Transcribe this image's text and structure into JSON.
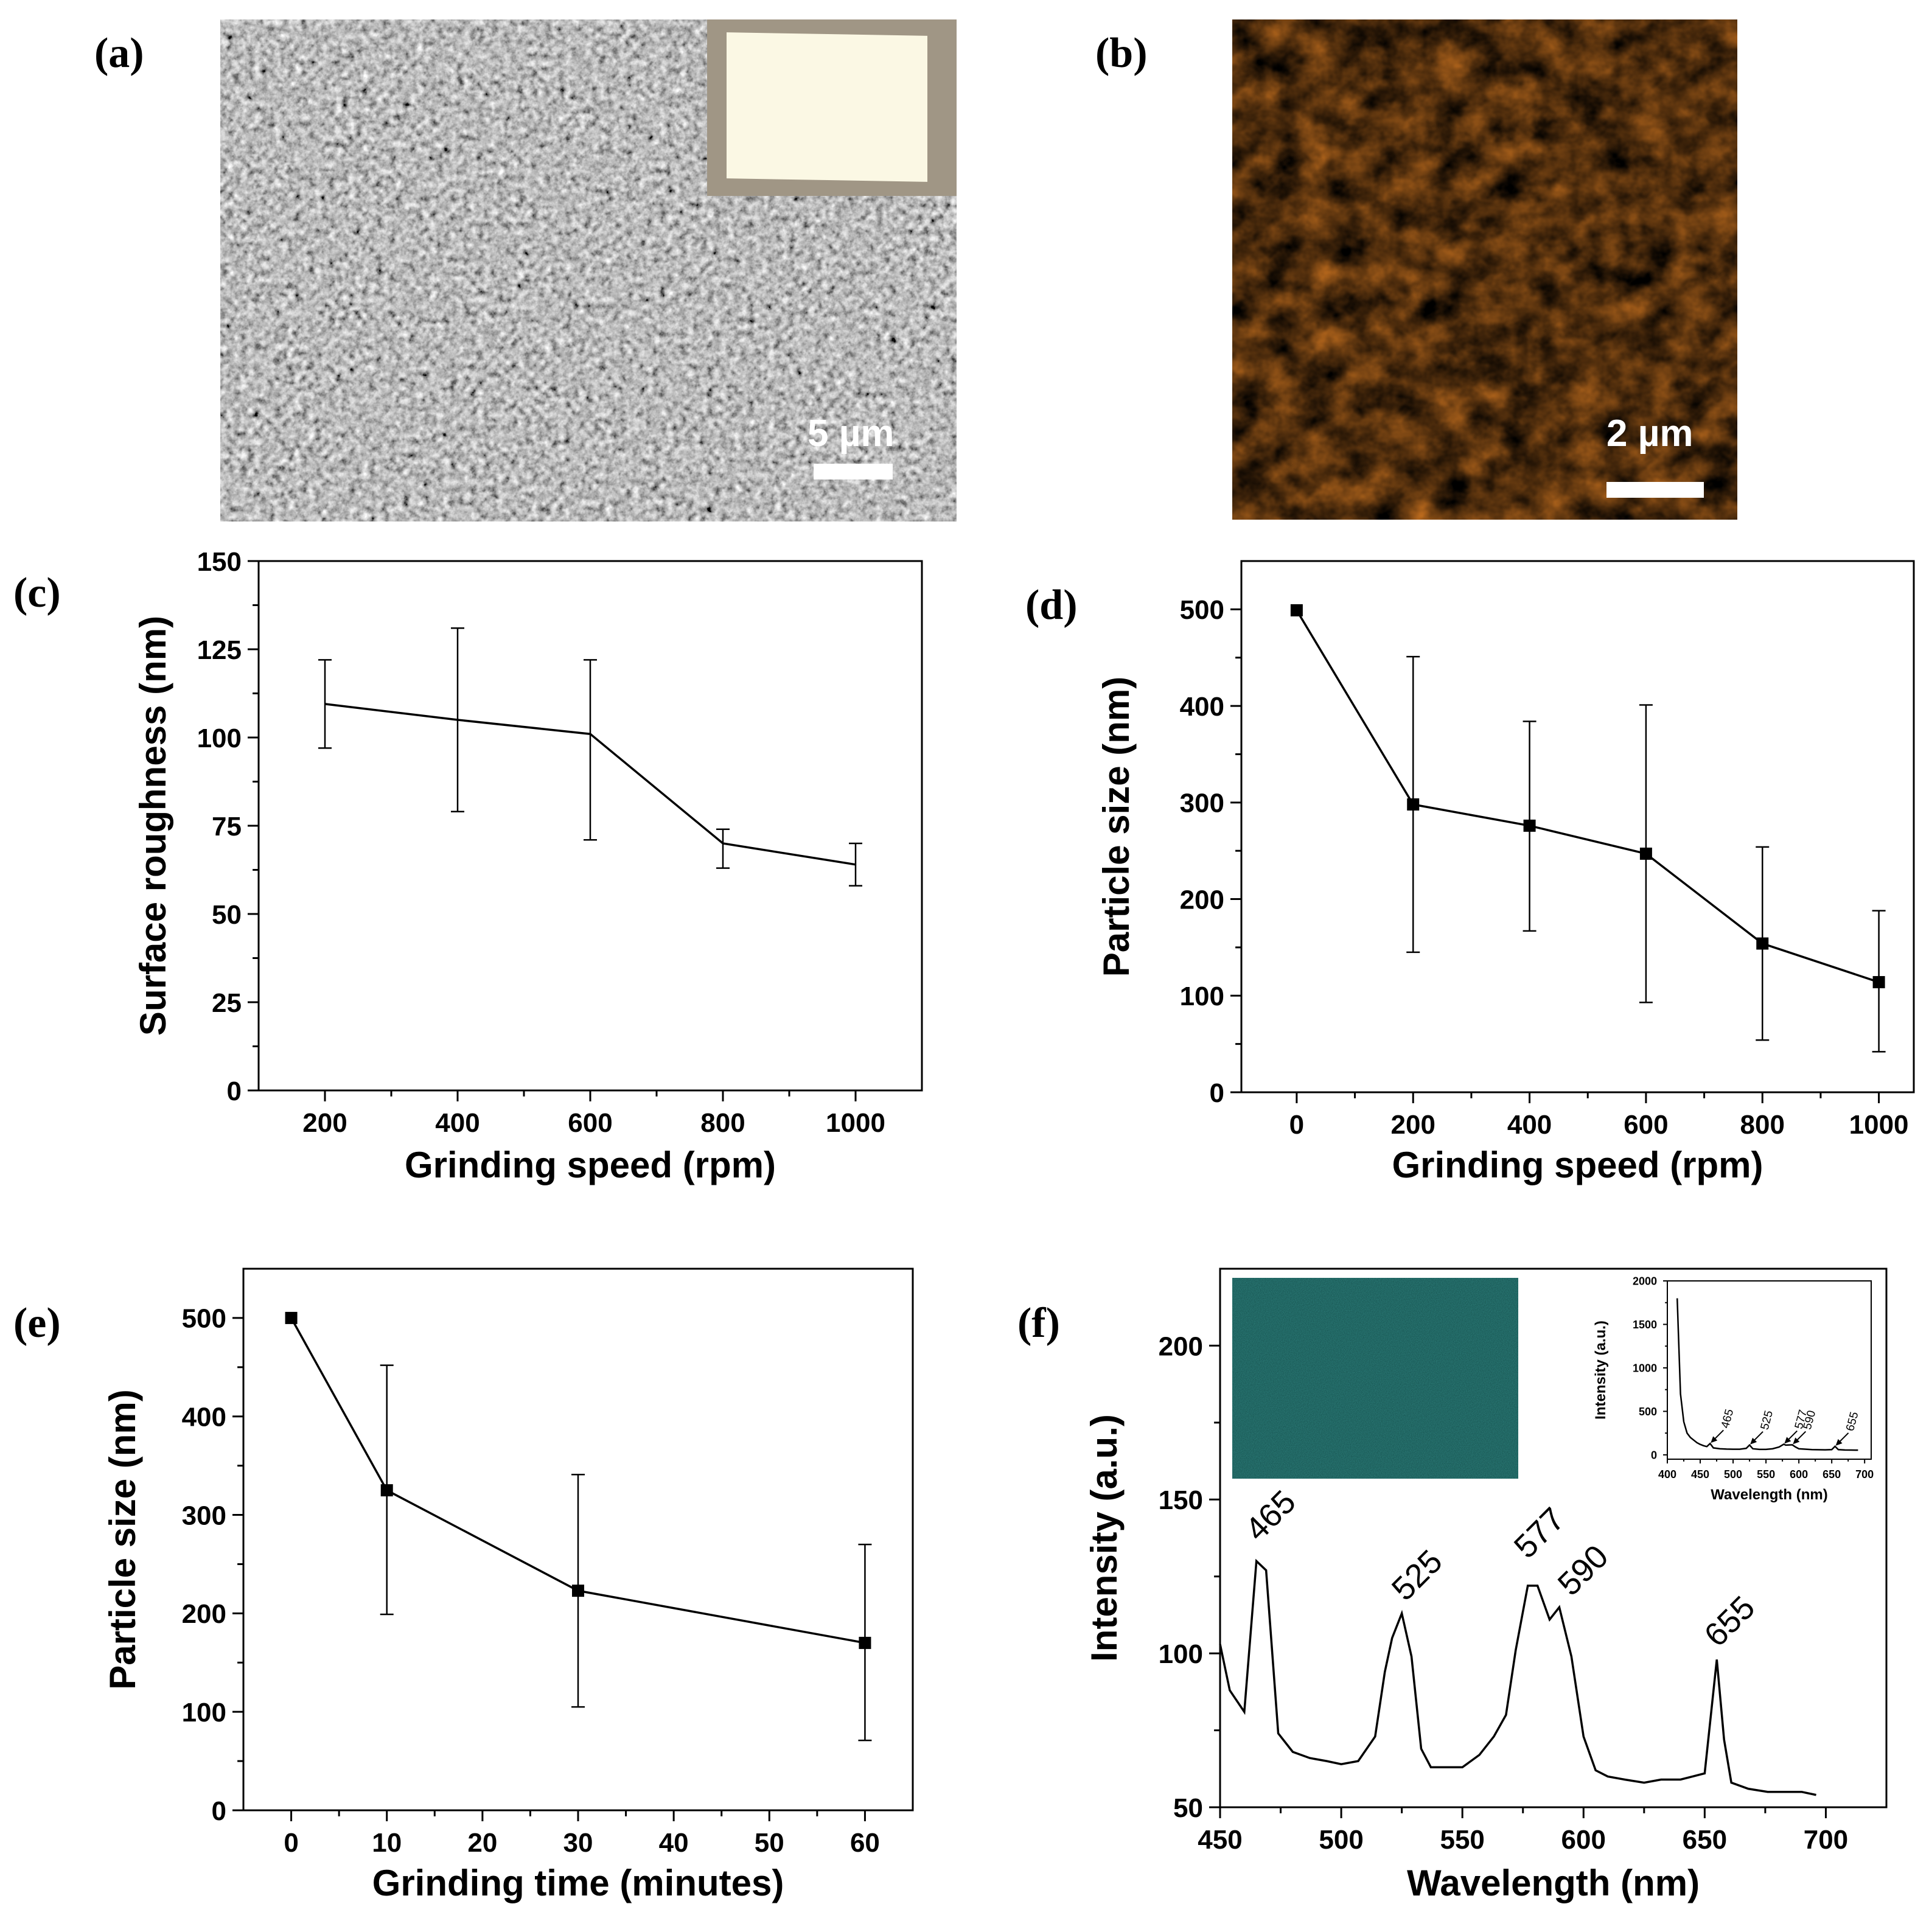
{
  "panels": {
    "a": {
      "label": "(a)",
      "scale_label": "5 µm"
    },
    "b": {
      "label": "(b)",
      "scale_label": "2 µm"
    },
    "c": {
      "label": "(c)"
    },
    "d": {
      "label": "(d)"
    },
    "e": {
      "label": "(e)"
    },
    "f": {
      "label": "(f)"
    }
  },
  "colors": {
    "sem_gray": "#8a8a8a",
    "afm_orange": "#d9852c",
    "map_teal": "#0f5f5a",
    "line": "#000000"
  },
  "chart_data": [
    {
      "id": "c",
      "type": "line",
      "xlabel": "Grinding speed (rpm)",
      "ylabel": "Surface roughness (nm)",
      "x": [
        200,
        400,
        600,
        800,
        1000
      ],
      "values": [
        109.5,
        105,
        101,
        70,
        64
      ],
      "err_upper": [
        122,
        131,
        122,
        74,
        70
      ],
      "err_lower": [
        97,
        79,
        71,
        63,
        58
      ],
      "xlim": [
        100,
        1100
      ],
      "ylim": [
        0,
        150
      ],
      "xticks": [
        200,
        400,
        600,
        800,
        1000
      ],
      "yticks": [
        0,
        25,
        50,
        75,
        100,
        125,
        150
      ],
      "markers": false
    },
    {
      "id": "d",
      "type": "line",
      "xlabel": "Grinding speed (rpm)",
      "ylabel": "Particle size (nm)",
      "x": [
        0,
        200,
        400,
        600,
        800,
        1000
      ],
      "values": [
        499,
        298,
        276,
        247,
        154,
        114
      ],
      "err_upper": [
        499,
        451,
        384,
        401,
        254,
        188
      ],
      "err_lower": [
        499,
        145,
        167,
        93,
        54,
        42
      ],
      "xlim": [
        -95,
        1060
      ],
      "ylim": [
        0,
        550
      ],
      "xticks": [
        0,
        200,
        400,
        600,
        800,
        1000
      ],
      "yticks": [
        0,
        100,
        200,
        300,
        400,
        500
      ],
      "markers": true
    },
    {
      "id": "e",
      "type": "line",
      "xlabel": "Grinding time (minutes)",
      "ylabel": "Particle size (nm)",
      "x": [
        0,
        10,
        30,
        60
      ],
      "values": [
        500,
        325,
        223,
        170
      ],
      "err_upper": [
        500,
        452,
        341,
        270
      ],
      "err_lower": [
        500,
        199,
        105,
        71
      ],
      "xlim": [
        -5,
        65
      ],
      "ylim": [
        0,
        550
      ],
      "xticks": [
        0,
        10,
        20,
        30,
        40,
        50,
        60
      ],
      "yticks": [
        0,
        100,
        200,
        300,
        400,
        500
      ],
      "markers": true
    },
    {
      "id": "f",
      "type": "line",
      "xlabel": "Wavelength (nm)",
      "ylabel": "Intensity (a.u.)",
      "x": [
        450,
        454,
        460,
        465,
        469,
        474,
        480,
        487,
        494,
        500,
        507,
        514,
        518,
        521,
        525,
        529,
        533,
        537,
        543,
        550,
        557,
        563,
        568,
        572,
        577,
        581,
        586,
        590,
        595,
        600,
        605,
        610,
        617,
        625,
        632,
        640,
        645,
        650,
        655,
        658,
        661,
        668,
        676,
        683,
        690,
        696
      ],
      "values": [
        103,
        88,
        81,
        130,
        127,
        74,
        68,
        66,
        65,
        64,
        65,
        73,
        94,
        105,
        113,
        99,
        69,
        63,
        63,
        63,
        67,
        73,
        80,
        101,
        122,
        122,
        111,
        115,
        99,
        73,
        62,
        60,
        59,
        58,
        59,
        59,
        60,
        61,
        98,
        72,
        58,
        56,
        55,
        55,
        55,
        54
      ],
      "peak_labels": [
        {
          "x": 465,
          "text": "465"
        },
        {
          "x": 525,
          "text": "525"
        },
        {
          "x": 577,
          "text": "577"
        },
        {
          "x": 590,
          "text": "590"
        },
        {
          "x": 655,
          "text": "655"
        }
      ],
      "xlim": [
        450,
        725
      ],
      "ylim": [
        50,
        225
      ],
      "xticks": [
        450,
        500,
        550,
        600,
        650,
        700
      ],
      "yticks": [
        50,
        100,
        150,
        200
      ],
      "markers": false,
      "inset": {
        "xlabel": "Wavelength (nm)",
        "ylabel": "Intensity (a.u.)",
        "x": [
          415,
          420,
          425,
          430,
          435,
          440,
          445,
          450,
          455,
          460,
          465,
          470,
          480,
          490,
          500,
          510,
          520,
          525,
          530,
          540,
          550,
          560,
          570,
          577,
          580,
          590,
          595,
          600,
          620,
          640,
          650,
          655,
          660,
          670,
          680,
          690
        ],
        "values": [
          1800,
          700,
          380,
          250,
          200,
          170,
          140,
          120,
          105,
          95,
          130,
          80,
          70,
          66,
          65,
          65,
          75,
          113,
          70,
          63,
          63,
          70,
          90,
          122,
          112,
          115,
          90,
          70,
          60,
          58,
          60,
          98,
          60,
          56,
          55,
          54
        ],
        "peak_labels": [
          "465",
          "525",
          "577",
          "590",
          "655"
        ],
        "xlim": [
          400,
          710
        ],
        "ylim": [
          -50,
          2000
        ],
        "xticks": [
          400,
          450,
          500,
          550,
          600,
          650,
          700
        ],
        "yticks": [
          0,
          500,
          1000,
          1500,
          2000
        ]
      }
    }
  ]
}
